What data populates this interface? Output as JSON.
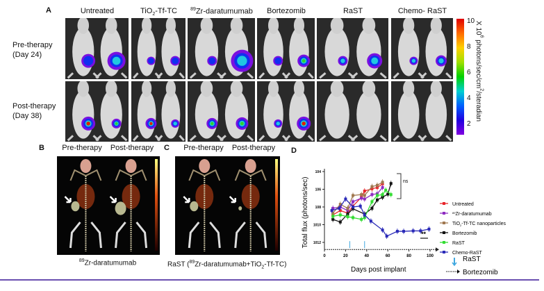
{
  "panel_a": {
    "label": "A",
    "columns": [
      "Untreated",
      "TiO2-Tf-TC",
      "89Zr-daratumumab",
      "Bortezomib",
      "RaST",
      "Chemo- RaST"
    ],
    "rows": [
      {
        "line1": "Pre-therapy",
        "line2": "(Day 24)"
      },
      {
        "line1": "Post-therapy",
        "line2": "(Day 38)"
      }
    ],
    "colorbar": {
      "ticks": [
        "10",
        "8",
        "6",
        "4",
        "2"
      ],
      "label": "X 10^6 photons/sec/cm²/steradian",
      "colors": [
        "#e00000",
        "#ffd000",
        "#00d000",
        "#00d0d0",
        "#2000e0",
        "#8000e0"
      ]
    }
  },
  "panel_b": {
    "label": "B",
    "titles": [
      "Pre-therapy",
      "Post-therapy"
    ],
    "caption": "89Zr-daratumumab"
  },
  "panel_c": {
    "label": "C",
    "titles": [
      "Pre-therapy",
      "Post-therapy"
    ],
    "caption": "RaST (89Zr-daratumumab+TiO2-Tf-TC)"
  },
  "panel_d": {
    "label": "D",
    "annotation_ns": "ns",
    "annotation_sig": "**",
    "markers_legend": [
      {
        "label": "RaST",
        "symbol": "blue-down-arrow"
      },
      {
        "label": "Bortezomib",
        "symbol": "dotted-right-arrow"
      }
    ]
  },
  "chart_data": {
    "type": "line",
    "title": "",
    "xlabel": "Days post implant",
    "ylabel": "Total flux (photons/sec)",
    "xlim": [
      0,
      100
    ],
    "xticks": [
      "0",
      "20",
      "40",
      "60",
      "80",
      "100"
    ],
    "ylim_log10": [
      3,
      12
    ],
    "yticks": [
      "10^4",
      "10^6",
      "10^8",
      "10^10",
      "10^12"
    ],
    "yscale": "log",
    "legend_position": "right",
    "treatment_days_rast": [
      24,
      38
    ],
    "series": [
      {
        "name": "Untreated",
        "color": "#e8262b",
        "x": [
          8,
          15,
          22,
          27,
          35,
          38,
          45,
          50,
          55
        ],
        "y_log10": [
          7.1,
          7.6,
          7.3,
          8.1,
          9.1,
          9.8,
          10.05,
          10.2,
          10.6
        ]
      },
      {
        "name": "89Zr-daratumumab",
        "color": "#8e2cc2",
        "x": [
          8,
          15,
          22,
          27,
          35,
          38,
          45,
          50,
          55
        ],
        "y_log10": [
          7.85,
          8.0,
          7.6,
          8.6,
          9.0,
          8.9,
          9.4,
          9.5,
          10.2
        ]
      },
      {
        "name": "TiO2-Tf-TC nanoparticles",
        "color": "#a07850",
        "x": [
          8,
          15,
          22,
          27,
          35,
          38,
          45,
          50,
          55
        ],
        "y_log10": [
          7.3,
          8.3,
          7.85,
          9.3,
          9.4,
          9.3,
          10.3,
          10.45,
          10.8
        ]
      },
      {
        "name": "Bortezomib",
        "color": "#111111",
        "x": [
          8,
          15,
          22,
          27,
          38,
          45,
          50,
          55,
          60,
          63
        ],
        "y_log10": [
          6.6,
          6.3,
          7.2,
          7.8,
          7.2,
          7.85,
          8.8,
          9.1,
          9.45,
          10.65
        ]
      },
      {
        "name": "RaST",
        "color": "#33dd33",
        "x": [
          8,
          15,
          22,
          27,
          35,
          38,
          45,
          50,
          55,
          58,
          63
        ],
        "y_log10": [
          6.95,
          7.1,
          6.9,
          6.8,
          6.6,
          6.8,
          8.6,
          9.3,
          9.4,
          9.9,
          9.4
        ]
      },
      {
        "name": "Chemo-RaST",
        "color": "#2a2ab8",
        "x": [
          7,
          14,
          20,
          27,
          34,
          38,
          44,
          55,
          59,
          69,
          75,
          84,
          91,
          99
        ],
        "y_log10": [
          7.6,
          7.85,
          8.9,
          8.0,
          8.1,
          7.1,
          6.4,
          5.4,
          4.7,
          5.25,
          5.25,
          5.3,
          5.3,
          5.5
        ]
      }
    ]
  }
}
